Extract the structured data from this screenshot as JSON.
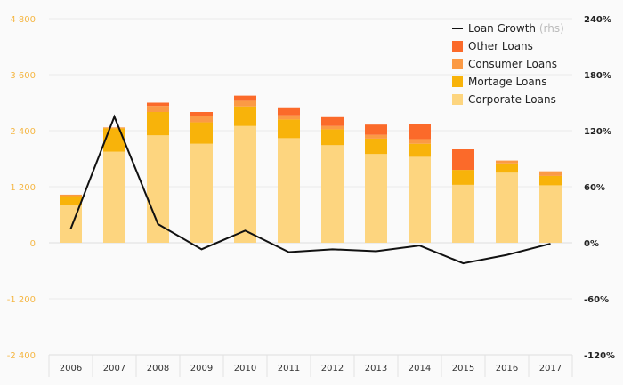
{
  "chart_data": {
    "type": "bar",
    "stacked": true,
    "categories": [
      "2006",
      "2007",
      "2008",
      "2009",
      "2010",
      "2011",
      "2012",
      "2013",
      "2014",
      "2015",
      "2016",
      "2017"
    ],
    "series": [
      {
        "name": "Corporate Loans",
        "color": "#fdd57f",
        "values": [
          800,
          1950,
          2300,
          2120,
          2500,
          2240,
          2090,
          1900,
          1840,
          1240,
          1500,
          1230
        ]
      },
      {
        "name": "Mortage Loans",
        "color": "#f8b30a",
        "values": [
          200,
          500,
          500,
          460,
          420,
          400,
          340,
          330,
          280,
          320,
          200,
          200
        ]
      },
      {
        "name": "Consumer Loans",
        "color": "#fb9a45",
        "values": [
          30,
          20,
          130,
          140,
          120,
          90,
          70,
          80,
          100,
          0,
          60,
          100
        ]
      },
      {
        "name": "Other Loans",
        "color": "#fb6a2a",
        "values": [
          0,
          0,
          70,
          80,
          110,
          170,
          190,
          220,
          320,
          440,
          0,
          0
        ]
      }
    ],
    "line_series": {
      "name": "Loan Growth",
      "suffix": "(rhs)",
      "color": "#111111",
      "axis": "right",
      "values": [
        15,
        135,
        20,
        -7,
        13,
        -10,
        -7,
        -9,
        -3,
        -22,
        -13,
        -1
      ]
    },
    "left_axis": {
      "min": -2400,
      "max": 4800,
      "ticks": [
        "-2 400",
        "-1 200",
        "0",
        "1 200",
        "2 400",
        "3 600",
        "4 800"
      ],
      "tick_values": [
        -2400,
        -1200,
        0,
        1200,
        2400,
        3600,
        4800
      ]
    },
    "right_axis": {
      "min": -120,
      "max": 240,
      "ticks": [
        "-120%",
        "-60%",
        "0%",
        "60%",
        "120%",
        "180%",
        "240%"
      ],
      "tick_values": [
        -120,
        -60,
        0,
        60,
        120,
        180,
        240
      ]
    },
    "legend": {
      "position": "top-right",
      "order": [
        "Loan Growth",
        "Other Loans",
        "Consumer Loans",
        "Mortage Loans",
        "Corporate Loans"
      ]
    },
    "title": "",
    "xlabel": "",
    "ylabel": ""
  }
}
